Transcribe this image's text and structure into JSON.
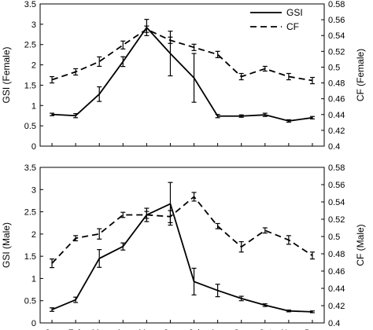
{
  "chart_data": [
    {
      "type": "line",
      "categories": [
        "Jan",
        "Feb",
        "Mar",
        "Apr",
        "May",
        "Jun",
        "Jul",
        "Aug",
        "Sep",
        "Oct",
        "Nov",
        "Dec"
      ],
      "ylabel": "GSI (Female)",
      "ylabel_right": "CF (Female)",
      "ylim": [
        0,
        3.5
      ],
      "ylim_right": [
        0.4,
        0.58
      ],
      "yticks": [
        "0",
        "0.5",
        "1",
        "1.5",
        "2",
        "2.5",
        "3",
        "3.5"
      ],
      "yticks_right": [
        "0.4",
        "0.42",
        "0.44",
        "0.46",
        "0.48",
        "0.5",
        "0.52",
        "0.54",
        "0.56",
        "0.58"
      ],
      "legend": "top-right",
      "series": [
        {
          "name": "GSI",
          "axis": "left",
          "style": "solid",
          "values": [
            0.78,
            0.75,
            1.28,
            2.08,
            2.92,
            2.28,
            1.68,
            0.74,
            0.74,
            0.77,
            0.62,
            0.7
          ],
          "errors": [
            0.03,
            0.05,
            0.18,
            0.12,
            0.2,
            0.55,
            0.6,
            0.04,
            0.03,
            0.04,
            0.03,
            0.03
          ]
        },
        {
          "name": "CF",
          "axis": "right",
          "style": "dashed",
          "values": [
            0.484,
            0.494,
            0.507,
            0.528,
            0.548,
            0.534,
            0.525,
            0.516,
            0.488,
            0.498,
            0.488,
            0.483
          ],
          "errors": [
            0.004,
            0.004,
            0.006,
            0.005,
            0.004,
            0.004,
            0.004,
            0.004,
            0.004,
            0.003,
            0.004,
            0.004
          ]
        }
      ]
    },
    {
      "type": "line",
      "categories": [
        "Jan",
        "Feb",
        "Mar",
        "Apr",
        "May",
        "Jun",
        "Jul",
        "Aug",
        "Sep",
        "Oct",
        "Nov",
        "Dec"
      ],
      "xlabel": "",
      "ylabel": "GSI (Male)",
      "ylabel_right": "CF (Male)",
      "ylim": [
        0,
        3.5
      ],
      "ylim_right": [
        0.4,
        0.58
      ],
      "yticks": [
        "0",
        "0.5",
        "1",
        "1.5",
        "2",
        "2.5",
        "3",
        "3.5"
      ],
      "yticks_right": [
        "0.4",
        "0.42",
        "0.44",
        "0.46",
        "0.48",
        "0.5",
        "0.52",
        "0.54",
        "0.56",
        "0.58"
      ],
      "series": [
        {
          "name": "GSI",
          "axis": "left",
          "style": "solid",
          "values": [
            0.3,
            0.52,
            1.45,
            1.72,
            2.43,
            2.68,
            0.93,
            0.73,
            0.55,
            0.4,
            0.27,
            0.25
          ],
          "errors": [
            0.04,
            0.06,
            0.2,
            0.08,
            0.15,
            0.48,
            0.3,
            0.14,
            0.05,
            0.03,
            0.02,
            0.02
          ]
        },
        {
          "name": "CF",
          "axis": "right",
          "style": "dashed",
          "values": [
            0.469,
            0.498,
            0.503,
            0.525,
            0.525,
            0.523,
            0.546,
            0.512,
            0.488,
            0.507,
            0.496,
            0.478
          ],
          "errors": [
            0.005,
            0.003,
            0.006,
            0.003,
            0.004,
            0.007,
            0.005,
            0.003,
            0.006,
            0.003,
            0.005,
            0.004
          ]
        }
      ]
    }
  ]
}
